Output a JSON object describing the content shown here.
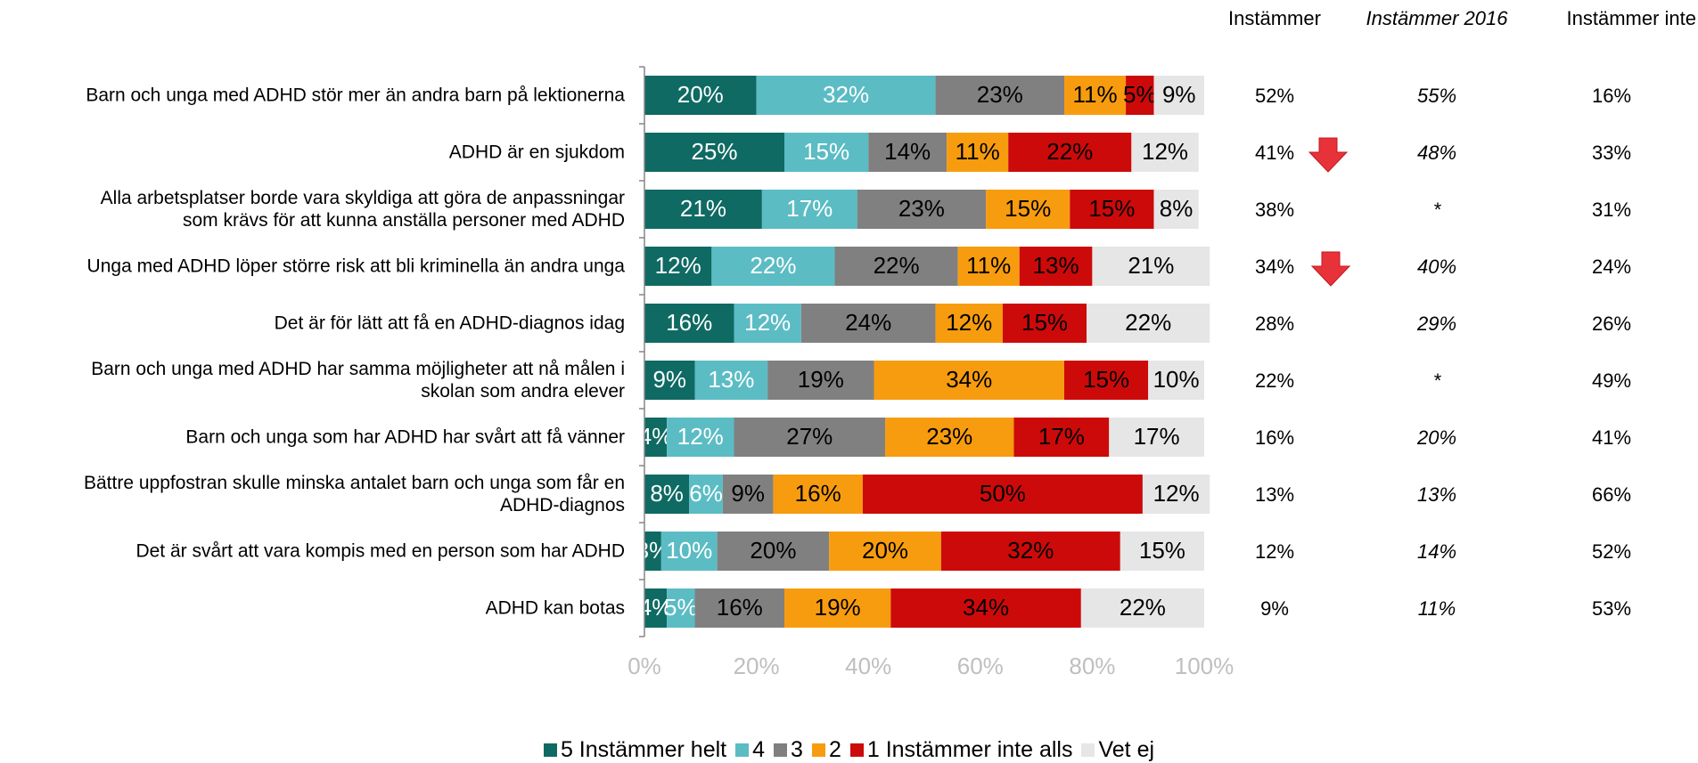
{
  "chart_data": {
    "type": "stacked-bar-horizontal",
    "categories": [
      "Barn och unga med ADHD stör mer än andra barn på lektionerna",
      "ADHD är en sjukdom",
      "Alla arbetsplatser borde vara skyldiga att göra de anpassningar\nsom krävs för att kunna anställa personer med ADHD",
      "Unga med ADHD löper större risk att bli kriminella än andra unga",
      "Det är för lätt att få en ADHD-diagnos idag",
      "Barn och unga med ADHD har samma möjligheter att nå målen i\nskolan som andra elever",
      "Barn och unga som har ADHD har svårt att få vänner",
      "Bättre uppfostran skulle minska antalet barn och unga som får en\nADHD-diagnos",
      "Det är svårt att vara kompis med en person som har ADHD",
      "ADHD kan botas"
    ],
    "series": [
      {
        "name": "5 Instämmer helt",
        "color": "#0f6a63",
        "label_color": "#ffffff",
        "values": [
          20,
          25,
          21,
          12,
          16,
          9,
          4,
          8,
          3,
          4
        ],
        "value_labels": [
          "20%",
          "25%",
          "21%",
          "12%",
          "16%",
          "9%",
          "4%",
          "8%",
          "3%",
          "4%"
        ]
      },
      {
        "name": "4",
        "color": "#5bbcc4",
        "label_color": "#ffffff",
        "values": [
          32,
          15,
          17,
          22,
          12,
          13,
          12,
          6,
          10,
          5
        ],
        "value_labels": [
          "32%",
          "15%",
          "17%",
          "22%",
          "12%",
          "13%",
          "12%",
          "6%",
          "10%",
          "5%"
        ]
      },
      {
        "name": "3",
        "color": "#808080",
        "label_color": "#000000",
        "values": [
          23,
          14,
          23,
          22,
          24,
          19,
          27,
          9,
          20,
          16
        ],
        "value_labels": [
          "23%",
          "14%",
          "23%",
          "22%",
          "24%",
          "19%",
          "27%",
          "9%",
          "20%",
          "16%"
        ]
      },
      {
        "name": "2",
        "color": "#f79c0f",
        "label_color": "#000000",
        "values": [
          11,
          11,
          15,
          11,
          12,
          34,
          23,
          16,
          20,
          19
        ],
        "value_labels": [
          "11%",
          "11%",
          "15%",
          "11%",
          "12%",
          "34%",
          "23%",
          "16%",
          "20%",
          "19%"
        ]
      },
      {
        "name": "1 Instämmer inte alls",
        "color": "#cc0a0a",
        "label_color": "#000000",
        "values": [
          5,
          22,
          15,
          13,
          15,
          15,
          17,
          50,
          32,
          34
        ],
        "value_labels": [
          "5%",
          "22%",
          "15%",
          "13%",
          "15%",
          "15%",
          "17%",
          "50%",
          "32%",
          "34%"
        ]
      },
      {
        "name": "Vet ej",
        "color": "#e6e6e6",
        "label_color": "#000000",
        "values": [
          9,
          12,
          8,
          21,
          22,
          10,
          17,
          12,
          15,
          22
        ],
        "value_labels": [
          "9%",
          "12%",
          "8%",
          "21%",
          "22%",
          "10%",
          "17%",
          "12%",
          "15%",
          "22%"
        ]
      }
    ],
    "xlim": [
      0,
      100
    ],
    "xticks": [
      {
        "value": 0,
        "label": "0%"
      },
      {
        "value": 20,
        "label": "20%"
      },
      {
        "value": 40,
        "label": "40%"
      },
      {
        "value": 60,
        "label": "60%"
      },
      {
        "value": 80,
        "label": "80%"
      },
      {
        "value": 100,
        "label": "100%"
      }
    ],
    "legend": "bottom",
    "table": {
      "columns": [
        "Instämmer",
        "Instämmer 2016",
        "Instämmer inte"
      ],
      "rows": [
        [
          "52%",
          "55%",
          "16%"
        ],
        [
          "41%",
          "48%",
          "33%"
        ],
        [
          "38%",
          "*",
          "31%"
        ],
        [
          "34%",
          "40%",
          "24%"
        ],
        [
          "28%",
          "29%",
          "26%"
        ],
        [
          "22%",
          "*",
          "49%"
        ],
        [
          "16%",
          "20%",
          "41%"
        ],
        [
          "13%",
          "13%",
          "66%"
        ],
        [
          "12%",
          "14%",
          "52%"
        ],
        [
          "9%",
          "11%",
          "53%"
        ]
      ]
    }
  }
}
